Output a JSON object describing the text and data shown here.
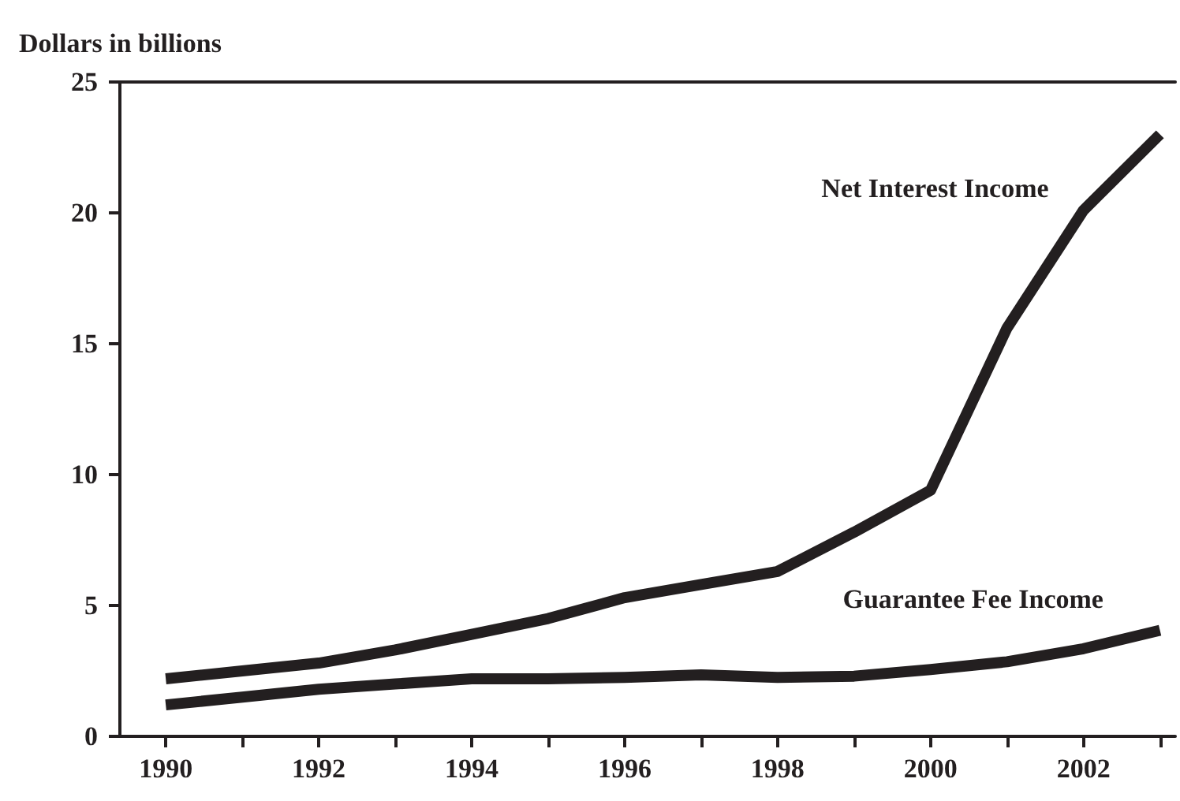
{
  "chart_data": {
    "type": "line",
    "ylabel": "Dollars in billions",
    "x": [
      1990,
      1991,
      1992,
      1993,
      1994,
      1995,
      1996,
      1997,
      1998,
      1999,
      2000,
      2001,
      2002,
      2003
    ],
    "series": [
      {
        "name": "Net Interest Income",
        "color": "#231f20",
        "values": [
          2.2,
          2.5,
          2.8,
          3.3,
          3.9,
          4.5,
          5.3,
          5.8,
          6.3,
          7.8,
          9.4,
          15.6,
          20.1,
          23.0
        ]
      },
      {
        "name": "Guarantee Fee Income",
        "color": "#231f20",
        "values": [
          1.2,
          1.5,
          1.8,
          2.0,
          2.2,
          2.2,
          2.25,
          2.35,
          2.25,
          2.3,
          2.55,
          2.85,
          3.35,
          4.05
        ]
      }
    ],
    "xlim": [
      1989.4,
      2003.2
    ],
    "xticks": [
      1990,
      {
        "value": 1991,
        "label": null
      },
      1992,
      {
        "value": 1993,
        "label": null
      },
      1994,
      {
        "value": 1995,
        "label": null
      },
      1996,
      {
        "value": 1997,
        "label": null
      },
      1998,
      {
        "value": 1999,
        "label": null
      },
      2000,
      {
        "value": 2001,
        "label": null
      },
      2002,
      {
        "value": 2003,
        "label": null
      }
    ],
    "ylim": [
      0,
      25
    ],
    "yticks": [
      0,
      5,
      10,
      15,
      20,
      25
    ],
    "grid": false,
    "legend": false,
    "marker": "none",
    "line_style": "solid"
  }
}
